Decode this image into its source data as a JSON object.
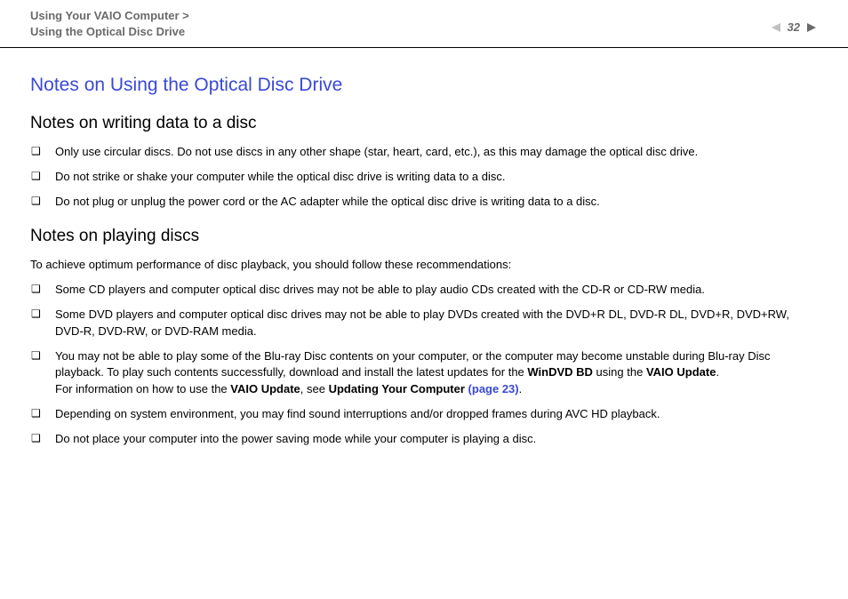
{
  "colors": {
    "text": "#000000",
    "muted": "#6a6a6a",
    "accent": "#3a49d4",
    "nav_prev": "#c0c0c0",
    "rule": "#000000",
    "background": "#ffffff"
  },
  "typography": {
    "body_fontsize": 13,
    "h1_fontsize": 21,
    "h2_fontsize": 19,
    "breadcrumb_fontsize": 13
  },
  "header": {
    "breadcrumb_line1": "Using Your VAIO Computer >",
    "breadcrumb_line2": "Using the Optical Disc Drive",
    "page_number": "32",
    "nav": {
      "prev_letter": "n",
      "next_letter": "N"
    }
  },
  "title": "Notes on Using the Optical Disc Drive",
  "section1": {
    "heading": "Notes on writing data to a disc",
    "items": [
      "Only use circular discs. Do not use discs in any other shape (star, heart, card, etc.), as this may damage the optical disc drive.",
      "Do not strike or shake your computer while the optical disc drive is writing data to a disc.",
      "Do not plug or unplug the power cord or the AC adapter while the optical disc drive is writing data to a disc."
    ]
  },
  "section2": {
    "heading": "Notes on playing discs",
    "intro": "To achieve optimum performance of disc playback, you should follow these recommendations:",
    "items": [
      {
        "runs": [
          {
            "t": "Some CD players and computer optical disc drives may not be able to play audio CDs created with the CD-R or CD-RW media."
          }
        ]
      },
      {
        "runs": [
          {
            "t": "Some DVD players and computer optical disc drives may not be able to play DVDs created with the DVD+R DL, DVD-R DL, DVD+R, DVD+RW, DVD-R, DVD-RW, or DVD-RAM media."
          }
        ]
      },
      {
        "runs": [
          {
            "t": "You may not be able to play some of the Blu-ray Disc contents on your computer, or the computer may become unstable during Blu-ray Disc playback. To play such contents successfully, download and install the latest updates for the "
          },
          {
            "t": "WinDVD BD",
            "bold": true
          },
          {
            "t": " using the "
          },
          {
            "t": "VAIO Update",
            "bold": true
          },
          {
            "t": "."
          },
          {
            "br": true
          },
          {
            "t": "For information on how to use the "
          },
          {
            "t": "VAIO Update",
            "bold": true
          },
          {
            "t": ", see "
          },
          {
            "t": "Updating Your Computer ",
            "bold": true
          },
          {
            "t": "(page 23)",
            "link": true
          },
          {
            "t": "."
          }
        ]
      },
      {
        "runs": [
          {
            "t": "Depending on system environment, you may find sound interruptions and/or dropped frames during AVC HD playback."
          }
        ]
      },
      {
        "runs": [
          {
            "t": "Do not place your computer into the power saving mode while your computer is playing a disc."
          }
        ]
      }
    ]
  }
}
